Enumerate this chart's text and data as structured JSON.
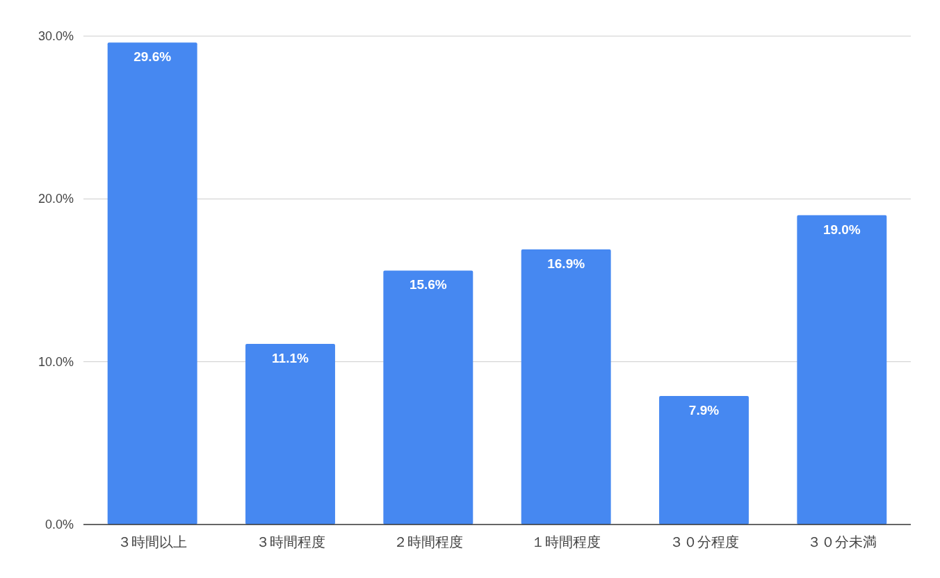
{
  "chart_data": {
    "type": "bar",
    "categories": [
      "３時間以上",
      "３時間程度",
      "２時間程度",
      "１時間程度",
      "３０分程度",
      "３０分未満"
    ],
    "values": [
      29.6,
      11.1,
      15.6,
      16.9,
      7.9,
      19.0
    ],
    "value_labels": [
      "29.6%",
      "11.1%",
      "15.6%",
      "16.9%",
      "7.9%",
      "19.0%"
    ],
    "color": "#4688f1",
    "ylim": [
      0,
      30
    ],
    "yticks": [
      {
        "value": 0,
        "label": "0.0%"
      },
      {
        "value": 10,
        "label": "10.0%"
      },
      {
        "value": 20,
        "label": "20.0%"
      },
      {
        "value": 30,
        "label": "30.0%"
      }
    ],
    "grid": "y"
  }
}
